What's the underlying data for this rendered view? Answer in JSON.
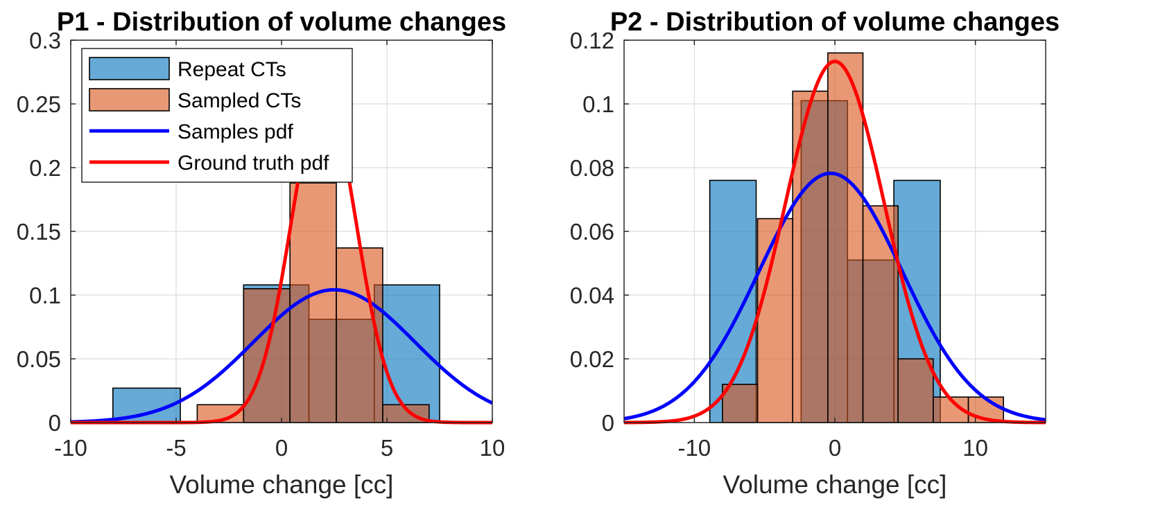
{
  "chart_data": [
    {
      "type": "bar",
      "title": "P1 - Distribution of volume changes",
      "xlabel": "Volume change [cc]",
      "ylabel": "",
      "xlim": [
        -10,
        10
      ],
      "ylim": [
        0,
        0.3
      ],
      "xticks": [
        -10,
        -5,
        0,
        5,
        10
      ],
      "xtick_labels": [
        "-10",
        "-5",
        "0",
        "5",
        "10"
      ],
      "yticks": [
        0,
        0.05,
        0.1,
        0.15,
        0.2,
        0.25,
        0.3
      ],
      "ytick_labels": [
        "0",
        "0.05",
        "0.1",
        "0.15",
        "0.2",
        "0.25",
        "0.3"
      ],
      "grid": true,
      "legend_position": "top-left",
      "series": [
        {
          "name": "Repeat CTs",
          "kind": "histogram",
          "color": "#0072BD",
          "bins": [
            {
              "x0": -8.0,
              "x1": -4.8,
              "value": 0.027
            },
            {
              "x0": -1.8,
              "x1": 1.3,
              "value": 0.108
            },
            {
              "x0": 1.3,
              "x1": 4.4,
              "value": 0.081
            },
            {
              "x0": 4.4,
              "x1": 7.5,
              "value": 0.108
            }
          ]
        },
        {
          "name": "Sampled CTs",
          "kind": "histogram",
          "color": "#D95319",
          "bins": [
            {
              "x0": -4.0,
              "x1": -1.8,
              "value": 0.014
            },
            {
              "x0": -1.8,
              "x1": 0.4,
              "value": 0.105
            },
            {
              "x0": 0.4,
              "x1": 2.6,
              "value": 0.188
            },
            {
              "x0": 2.6,
              "x1": 4.8,
              "value": 0.137
            },
            {
              "x0": 4.8,
              "x1": 7.0,
              "value": 0.014
            }
          ]
        },
        {
          "name": "Samples pdf",
          "kind": "pdf",
          "color": "#0000FF",
          "mu": 2.5,
          "sigma": 3.83
        },
        {
          "name": "Ground truth pdf",
          "kind": "pdf",
          "color": "#FF0000",
          "mu": 2.0,
          "sigma": 1.55
        }
      ]
    },
    {
      "type": "bar",
      "title": "P2 - Distribution of volume changes",
      "xlabel": "Volume change [cc]",
      "ylabel": "",
      "xlim": [
        -15,
        15
      ],
      "ylim": [
        0,
        0.12
      ],
      "xticks": [
        -10,
        0,
        10
      ],
      "xtick_labels": [
        "-10",
        "0",
        "10"
      ],
      "yticks": [
        0,
        0.02,
        0.04,
        0.06,
        0.08,
        0.1,
        0.12
      ],
      "ytick_labels": [
        "0",
        "0.02",
        "0.04",
        "0.06",
        "0.08",
        "0.1",
        "0.12"
      ],
      "grid": true,
      "legend_position": "none",
      "series": [
        {
          "name": "Repeat CTs",
          "kind": "histogram",
          "color": "#0072BD",
          "bins": [
            {
              "x0": -8.9,
              "x1": -5.6,
              "value": 0.076
            },
            {
              "x0": -2.4,
              "x1": 0.9,
              "value": 0.101
            },
            {
              "x0": 0.9,
              "x1": 4.2,
              "value": 0.051
            },
            {
              "x0": 4.2,
              "x1": 7.5,
              "value": 0.076
            }
          ]
        },
        {
          "name": "Sampled CTs",
          "kind": "histogram",
          "color": "#D95319",
          "bins": [
            {
              "x0": -8.0,
              "x1": -5.5,
              "value": 0.012
            },
            {
              "x0": -5.5,
              "x1": -3.0,
              "value": 0.064
            },
            {
              "x0": -3.0,
              "x1": -0.5,
              "value": 0.104
            },
            {
              "x0": -0.5,
              "x1": 2.0,
              "value": 0.116
            },
            {
              "x0": 2.0,
              "x1": 4.5,
              "value": 0.068
            },
            {
              "x0": 4.5,
              "x1": 7.0,
              "value": 0.02
            },
            {
              "x0": 7.0,
              "x1": 9.5,
              "value": 0.008
            },
            {
              "x0": 9.5,
              "x1": 12.0,
              "value": 0.008
            }
          ]
        },
        {
          "name": "Samples pdf",
          "kind": "pdf",
          "color": "#0000FF",
          "mu": -0.3,
          "sigma": 5.1
        },
        {
          "name": "Ground truth pdf",
          "kind": "pdf",
          "color": "#FF0000",
          "mu": 0.0,
          "sigma": 3.52
        }
      ]
    }
  ]
}
